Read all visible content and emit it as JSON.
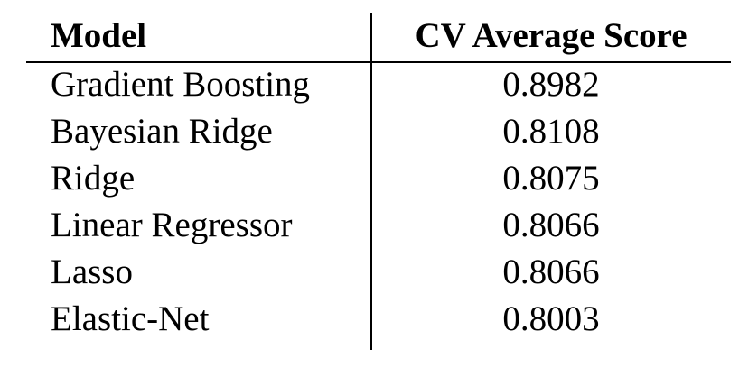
{
  "table": {
    "headers": {
      "model": "Model",
      "score": "CV Average Score"
    },
    "rows": [
      {
        "model": "Gradient Boosting",
        "score": "0.8982"
      },
      {
        "model": "Bayesian Ridge",
        "score": "0.8108"
      },
      {
        "model": "Ridge",
        "score": "0.8075"
      },
      {
        "model": "Linear Regressor",
        "score": "0.8066"
      },
      {
        "model": "Lasso",
        "score": "0.8066"
      },
      {
        "model": "Elastic-Net",
        "score": "0.8003"
      }
    ]
  }
}
